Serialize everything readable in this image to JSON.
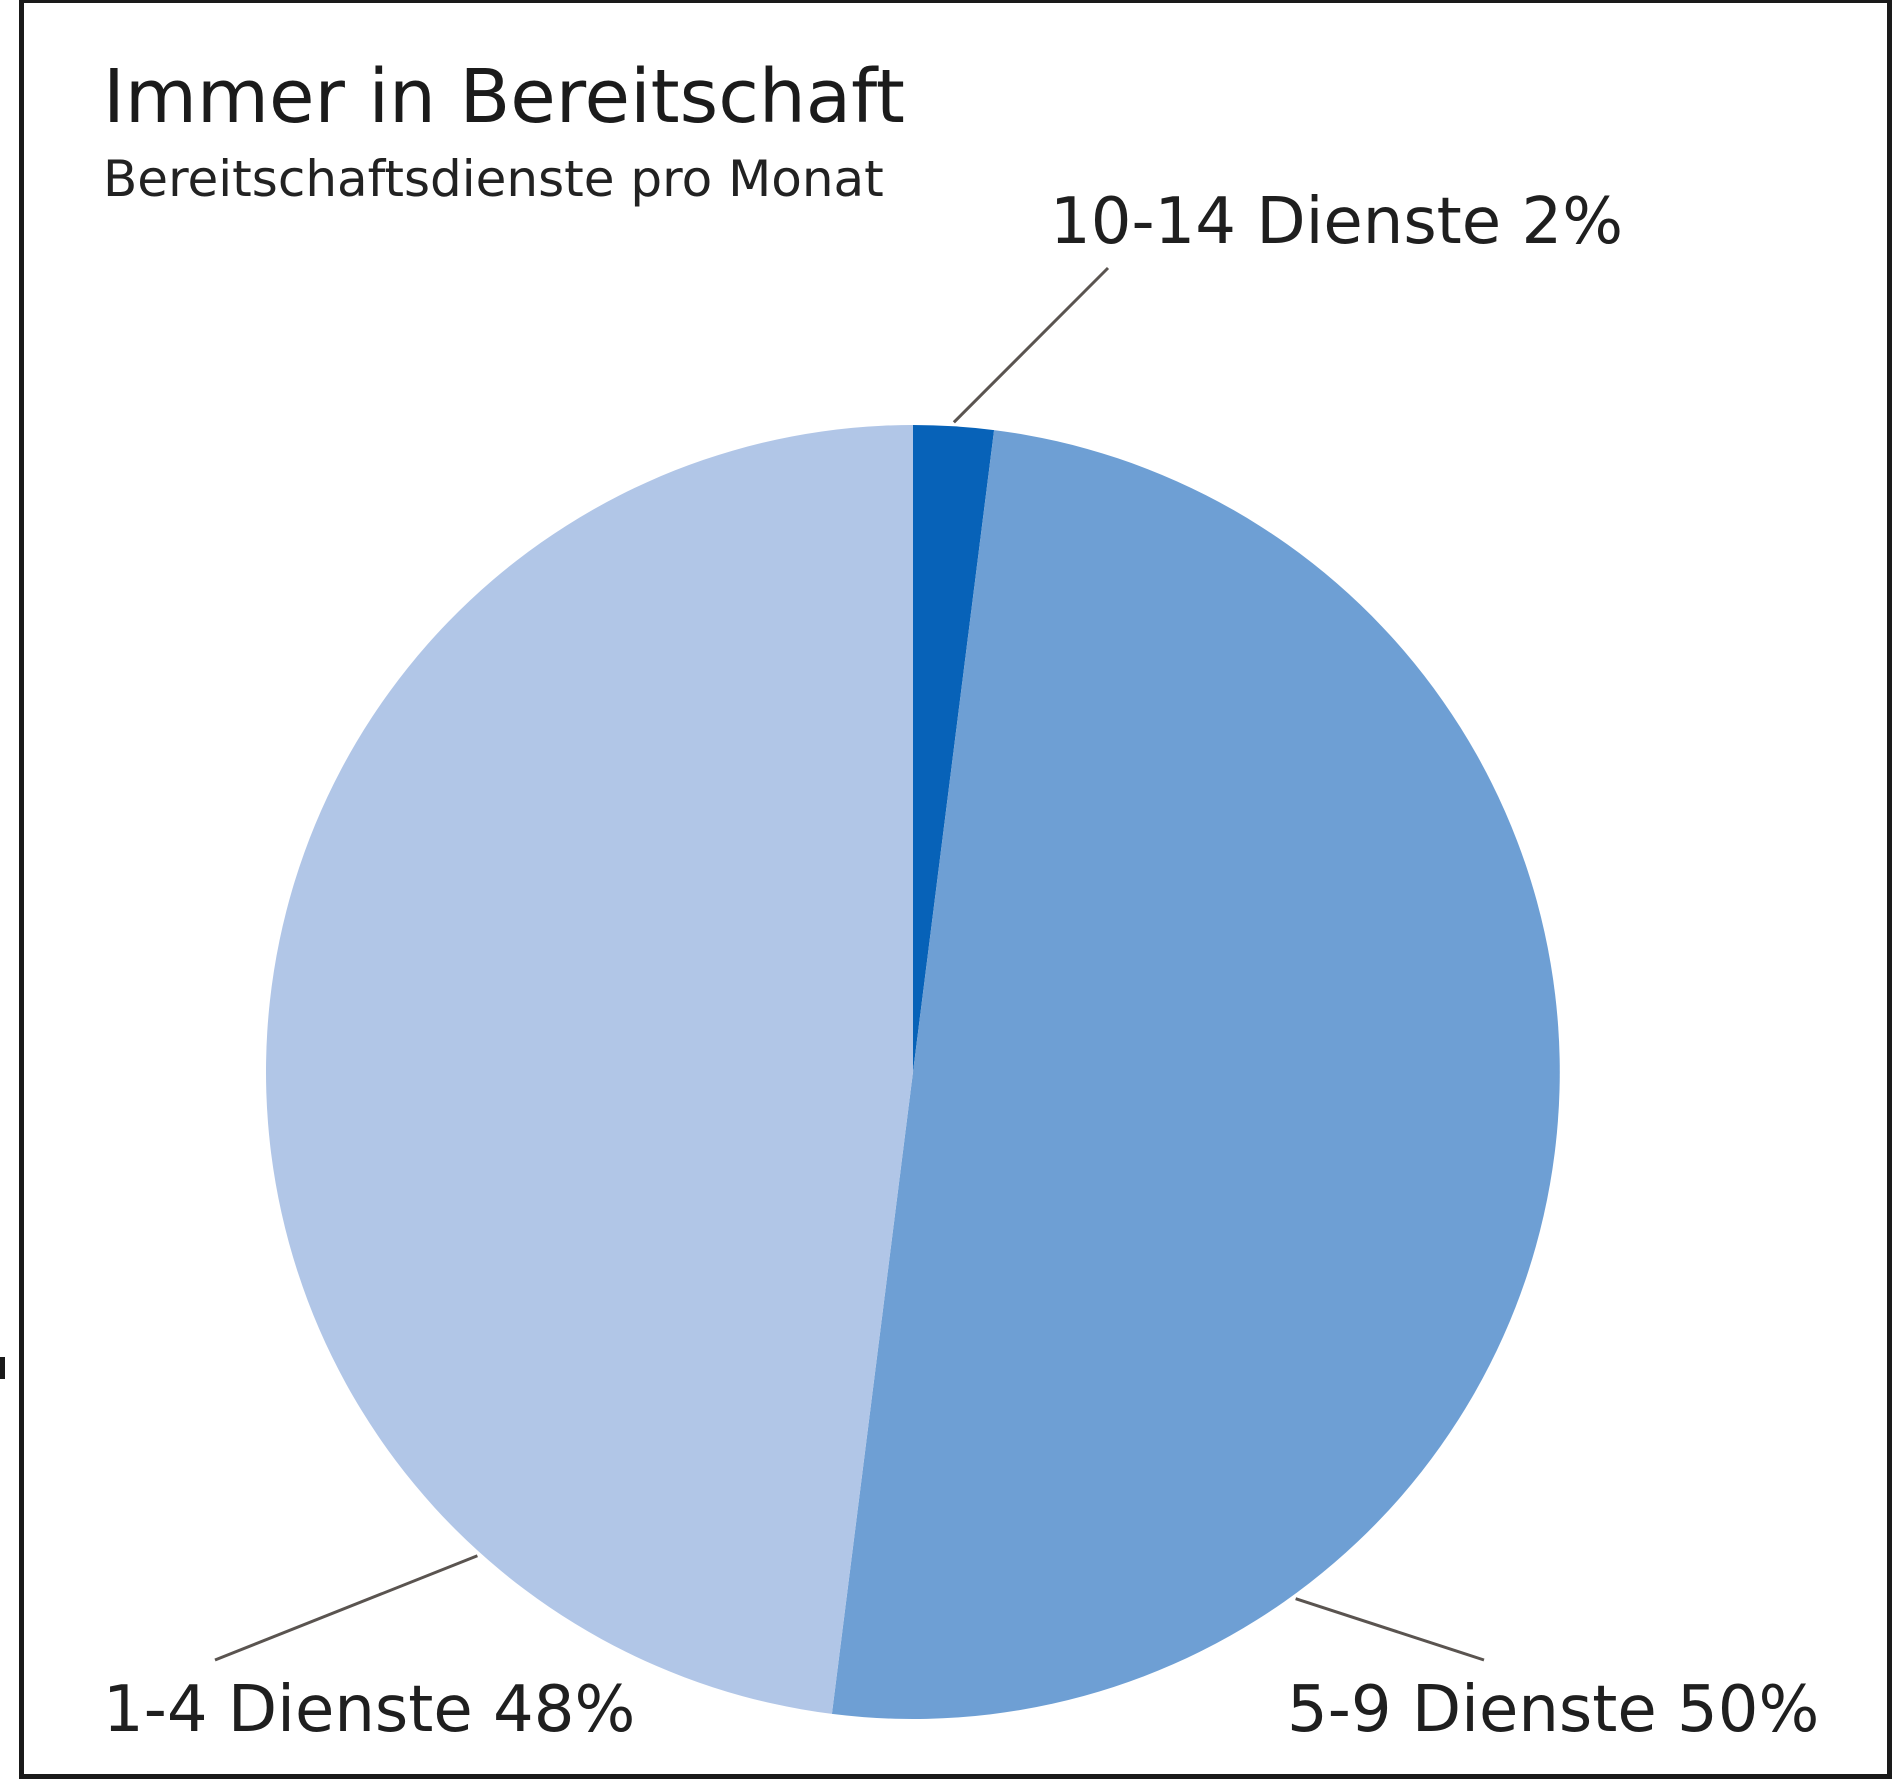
{
  "chart_data": {
    "type": "pie",
    "title": "Immer in Bereitschaft",
    "subtitle": "Bereitschaftsdienste pro Monat",
    "slices": [
      {
        "label": "10-14 Dienste 2%",
        "value": 2,
        "color": "#0762b8"
      },
      {
        "label": "5-9 Dienste 50%",
        "value": 50,
        "color": "#6e9fd4"
      },
      {
        "label": "1-4 Dienste 48%",
        "value": 48,
        "color": "#b1c6e7"
      }
    ],
    "start": "12 o'clock",
    "direction": "clockwise",
    "legend": "none",
    "label_style": "outside with leader lines"
  }
}
